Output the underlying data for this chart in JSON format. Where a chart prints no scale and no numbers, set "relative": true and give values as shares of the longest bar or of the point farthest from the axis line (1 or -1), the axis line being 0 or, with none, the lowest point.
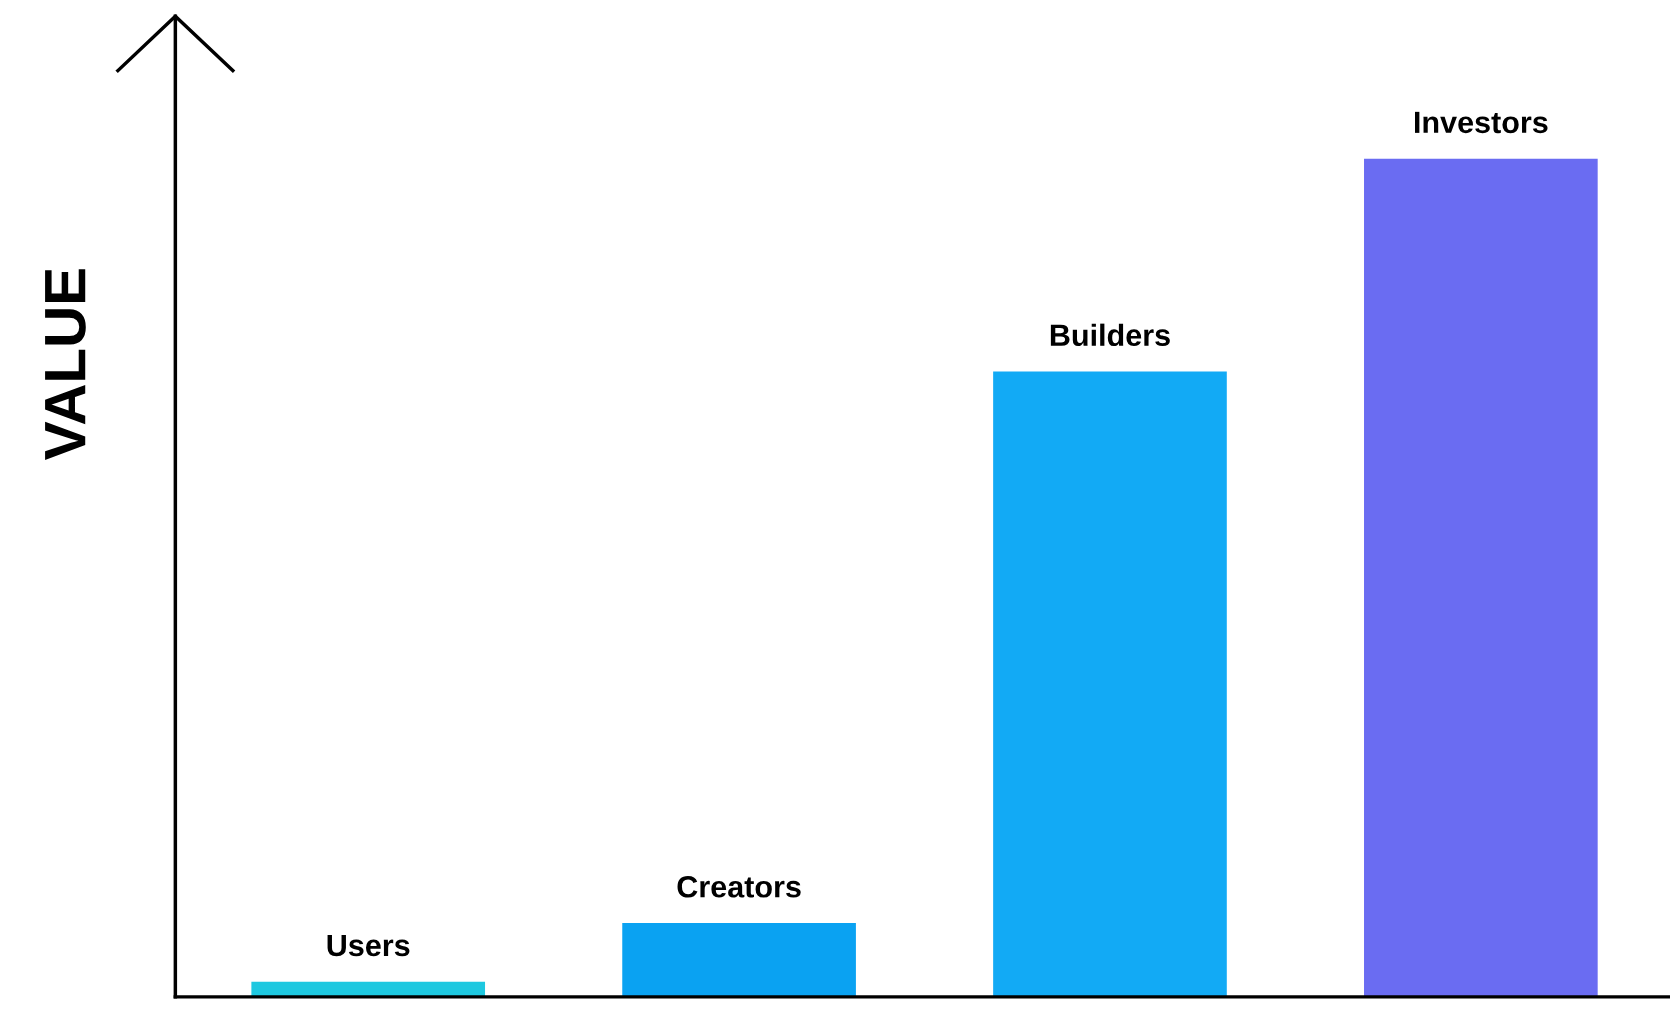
{
  "chart_data": {
    "type": "bar",
    "relative": true,
    "ylabel": "VALUE",
    "categories": [
      "Users",
      "Creators",
      "Builders",
      "Investors"
    ],
    "values": [
      0.018,
      0.088,
      0.746,
      1
    ],
    "colors": [
      "#1ec8e0",
      "#0aa2f2",
      "#12aaf5",
      "#6a6cf2"
    ],
    "legend": false
  }
}
